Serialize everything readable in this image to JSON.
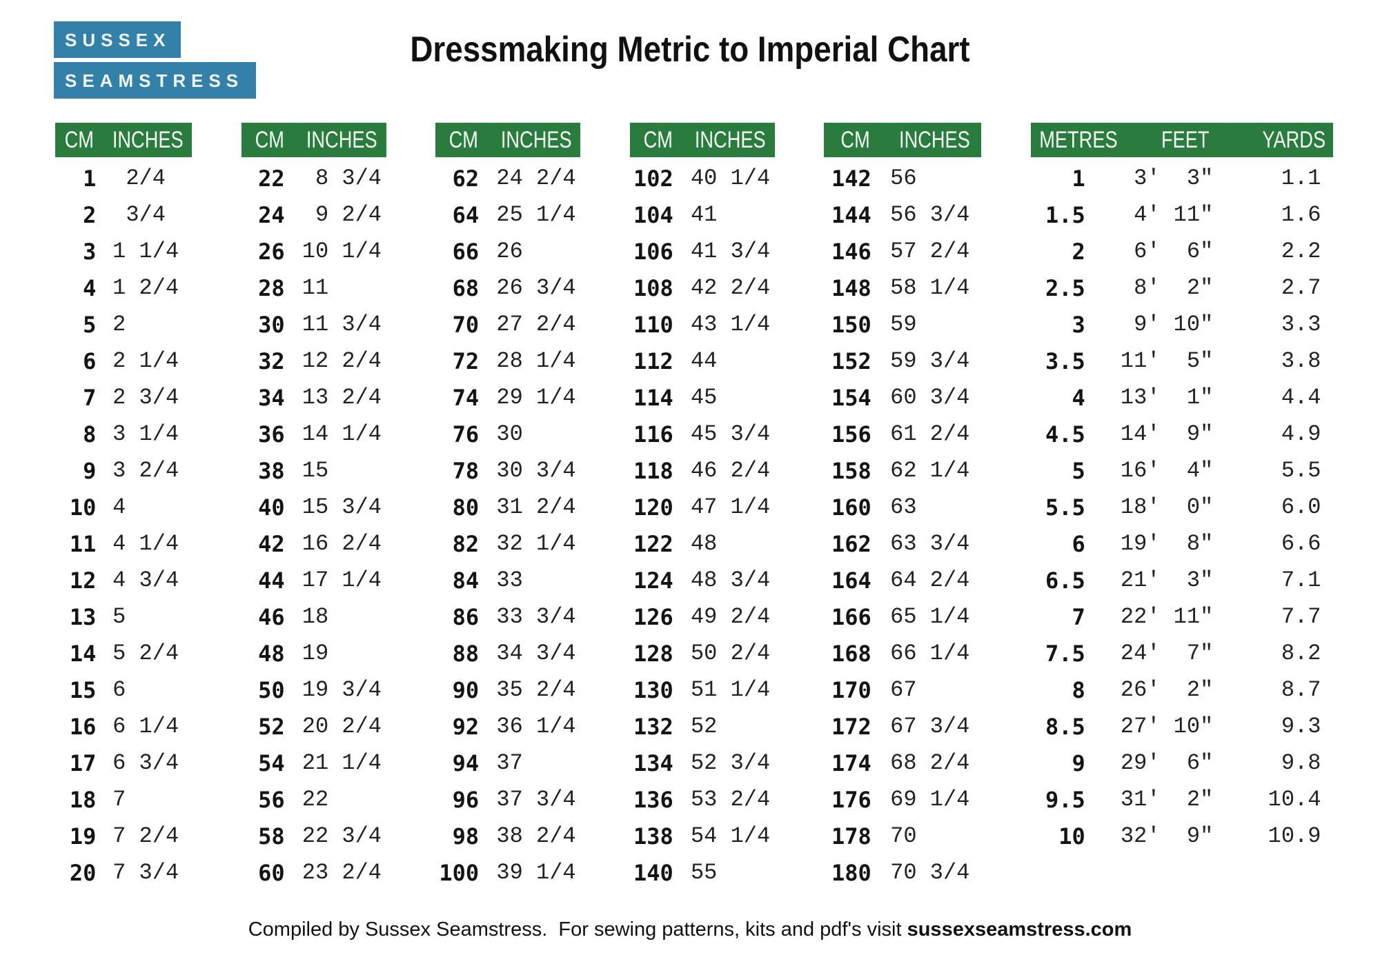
{
  "logo": {
    "line1": "SUSSEX",
    "line2": "SEAMSTRESS"
  },
  "title": "Dressmaking Metric to Imperial Chart",
  "colors": {
    "header_green": "#2a7c3e",
    "logo_blue": "#3380a8"
  },
  "cm_tables": [
    {
      "headers": [
        "CM",
        "INCHES"
      ],
      "rows": [
        [
          "1",
          " 2/4"
        ],
        [
          "2",
          " 3/4"
        ],
        [
          "3",
          "1 1/4"
        ],
        [
          "4",
          "1 2/4"
        ],
        [
          "5",
          "2"
        ],
        [
          "6",
          "2 1/4"
        ],
        [
          "7",
          "2 3/4"
        ],
        [
          "8",
          "3 1/4"
        ],
        [
          "9",
          "3 2/4"
        ],
        [
          "10",
          "4"
        ],
        [
          "11",
          "4 1/4"
        ],
        [
          "12",
          "4 3/4"
        ],
        [
          "13",
          "5"
        ],
        [
          "14",
          "5 2/4"
        ],
        [
          "15",
          "6"
        ],
        [
          "16",
          "6 1/4"
        ],
        [
          "17",
          "6 3/4"
        ],
        [
          "18",
          "7"
        ],
        [
          "19",
          "7 2/4"
        ],
        [
          "20",
          "7 3/4"
        ]
      ]
    },
    {
      "headers": [
        "CM",
        "INCHES"
      ],
      "rows": [
        [
          "22",
          " 8 3/4"
        ],
        [
          "24",
          " 9 2/4"
        ],
        [
          "26",
          "10 1/4"
        ],
        [
          "28",
          "11"
        ],
        [
          "30",
          "11 3/4"
        ],
        [
          "32",
          "12 2/4"
        ],
        [
          "34",
          "13 2/4"
        ],
        [
          "36",
          "14 1/4"
        ],
        [
          "38",
          "15"
        ],
        [
          "40",
          "15 3/4"
        ],
        [
          "42",
          "16 2/4"
        ],
        [
          "44",
          "17 1/4"
        ],
        [
          "46",
          "18"
        ],
        [
          "48",
          "19"
        ],
        [
          "50",
          "19 3/4"
        ],
        [
          "52",
          "20 2/4"
        ],
        [
          "54",
          "21 1/4"
        ],
        [
          "56",
          "22"
        ],
        [
          "58",
          "22 3/4"
        ],
        [
          "60",
          "23 2/4"
        ]
      ]
    },
    {
      "headers": [
        "CM",
        "INCHES"
      ],
      "rows": [
        [
          "62",
          "24 2/4"
        ],
        [
          "64",
          "25 1/4"
        ],
        [
          "66",
          "26"
        ],
        [
          "68",
          "26 3/4"
        ],
        [
          "70",
          "27 2/4"
        ],
        [
          "72",
          "28 1/4"
        ],
        [
          "74",
          "29 1/4"
        ],
        [
          "76",
          "30"
        ],
        [
          "78",
          "30 3/4"
        ],
        [
          "80",
          "31 2/4"
        ],
        [
          "82",
          "32 1/4"
        ],
        [
          "84",
          "33"
        ],
        [
          "86",
          "33 3/4"
        ],
        [
          "88",
          "34 3/4"
        ],
        [
          "90",
          "35 2/4"
        ],
        [
          "92",
          "36 1/4"
        ],
        [
          "94",
          "37"
        ],
        [
          "96",
          "37 3/4"
        ],
        [
          "98",
          "38 2/4"
        ],
        [
          "100",
          "39 1/4"
        ]
      ]
    },
    {
      "headers": [
        "CM",
        "INCHES"
      ],
      "rows": [
        [
          "102",
          "40 1/4"
        ],
        [
          "104",
          "41"
        ],
        [
          "106",
          "41 3/4"
        ],
        [
          "108",
          "42 2/4"
        ],
        [
          "110",
          "43 1/4"
        ],
        [
          "112",
          "44"
        ],
        [
          "114",
          "45"
        ],
        [
          "116",
          "45 3/4"
        ],
        [
          "118",
          "46 2/4"
        ],
        [
          "120",
          "47 1/4"
        ],
        [
          "122",
          "48"
        ],
        [
          "124",
          "48 3/4"
        ],
        [
          "126",
          "49 2/4"
        ],
        [
          "128",
          "50 2/4"
        ],
        [
          "130",
          "51 1/4"
        ],
        [
          "132",
          "52"
        ],
        [
          "134",
          "52 3/4"
        ],
        [
          "136",
          "53 2/4"
        ],
        [
          "138",
          "54 1/4"
        ],
        [
          "140",
          "55"
        ]
      ]
    },
    {
      "headers": [
        "CM",
        "INCHES"
      ],
      "rows": [
        [
          "142",
          "56"
        ],
        [
          "144",
          "56 3/4"
        ],
        [
          "146",
          "57 2/4"
        ],
        [
          "148",
          "58 1/4"
        ],
        [
          "150",
          "59"
        ],
        [
          "152",
          "59 3/4"
        ],
        [
          "154",
          "60 3/4"
        ],
        [
          "156",
          "61 2/4"
        ],
        [
          "158",
          "62 1/4"
        ],
        [
          "160",
          "63"
        ],
        [
          "162",
          "63 3/4"
        ],
        [
          "164",
          "64 2/4"
        ],
        [
          "166",
          "65 1/4"
        ],
        [
          "168",
          "66 1/4"
        ],
        [
          "170",
          "67"
        ],
        [
          "172",
          "67 3/4"
        ],
        [
          "174",
          "68 2/4"
        ],
        [
          "176",
          "69 1/4"
        ],
        [
          "178",
          "70"
        ],
        [
          "180",
          "70 3/4"
        ]
      ]
    }
  ],
  "metres_table": {
    "headers": [
      "METRES",
      "FEET",
      "YARDS"
    ],
    "rows": [
      [
        "1",
        " 3'  3\"",
        "1.1"
      ],
      [
        "1.5",
        " 4' 11\"",
        "1.6"
      ],
      [
        "2",
        " 6'  6\"",
        "2.2"
      ],
      [
        "2.5",
        " 8'  2\"",
        "2.7"
      ],
      [
        "3",
        " 9' 10\"",
        "3.3"
      ],
      [
        "3.5",
        "11'  5\"",
        "3.8"
      ],
      [
        "4",
        "13'  1\"",
        "4.4"
      ],
      [
        "4.5",
        "14'  9\"",
        "4.9"
      ],
      [
        "5",
        "16'  4\"",
        "5.5"
      ],
      [
        "5.5",
        "18'  0\"",
        "6.0"
      ],
      [
        "6",
        "19'  8\"",
        "6.6"
      ],
      [
        "6.5",
        "21'  3\"",
        "7.1"
      ],
      [
        "7",
        "22' 11\"",
        "7.7"
      ],
      [
        "7.5",
        "24'  7\"",
        "8.2"
      ],
      [
        "8",
        "26'  2\"",
        "8.7"
      ],
      [
        "8.5",
        "27' 10\"",
        "9.3"
      ],
      [
        "9",
        "29'  6\"",
        "9.8"
      ],
      [
        "9.5",
        "31'  2\"",
        "10.4"
      ],
      [
        "10",
        "32'  9\"",
        "10.9"
      ]
    ]
  },
  "footer": {
    "text": "Compiled by Sussex Seamstress.  For sewing patterns, kits and pdf's visit ",
    "link": "sussexseamstress.com"
  }
}
